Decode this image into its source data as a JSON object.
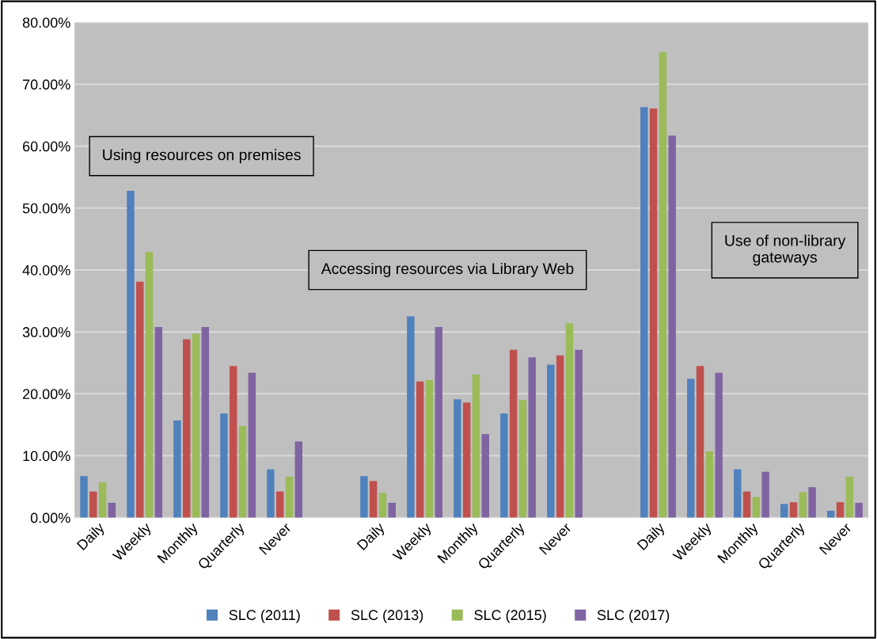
{
  "chart_data": {
    "type": "bar",
    "categories": [
      "Daily",
      "Weekly",
      "Monthly",
      "Quarterly",
      "Never",
      null,
      "Daily",
      "Weekly",
      "Monthly",
      "Quarterly",
      "Never",
      null,
      "Daily",
      "Weekly",
      "Monthly",
      "Quarterly",
      "Never"
    ],
    "series": [
      {
        "name": "SLC (2011)",
        "color": "#4f81bd",
        "values": [
          6.7,
          52.8,
          15.7,
          16.8,
          7.8,
          null,
          6.7,
          32.5,
          19.1,
          16.8,
          24.7,
          null,
          66.3,
          22.4,
          7.8,
          2.2,
          1.1
        ]
      },
      {
        "name": "SLC (2013)",
        "color": "#c0504d",
        "values": [
          4.2,
          38.1,
          28.8,
          24.5,
          4.2,
          null,
          5.9,
          22.0,
          18.6,
          27.1,
          26.2,
          null,
          66.1,
          24.5,
          4.2,
          2.5,
          2.5
        ]
      },
      {
        "name": "SLC (2015)",
        "color": "#9bbb59",
        "values": [
          5.7,
          42.9,
          29.7,
          14.8,
          6.6,
          null,
          4.0,
          22.2,
          23.1,
          19.0,
          31.4,
          null,
          75.2,
          10.7,
          3.3,
          4.1,
          6.6
        ]
      },
      {
        "name": "SLC (2017)",
        "color": "#8064a2",
        "values": [
          2.4,
          30.8,
          30.8,
          23.4,
          12.3,
          null,
          2.4,
          30.8,
          13.5,
          25.9,
          27.1,
          null,
          61.7,
          23.4,
          7.4,
          4.9,
          2.4
        ]
      }
    ],
    "ylim": [
      0,
      80
    ],
    "yticks": [
      {
        "value": 0,
        "label": "0.00%"
      },
      {
        "value": 10,
        "label": "10.00%"
      },
      {
        "value": 20,
        "label": "20.00%"
      },
      {
        "value": 30,
        "label": "30.00%"
      },
      {
        "value": 40,
        "label": "40.00%"
      },
      {
        "value": 50,
        "label": "50.00%"
      },
      {
        "value": 60,
        "label": "60.00%"
      },
      {
        "value": 70,
        "label": "70.00%"
      },
      {
        "value": 80,
        "label": "80.00%"
      }
    ],
    "grid": "y",
    "legend": "bottom",
    "annotations": [
      "Using resources on premises",
      "Accessing resources via Library Web",
      "Use of non-library gateways"
    ]
  }
}
